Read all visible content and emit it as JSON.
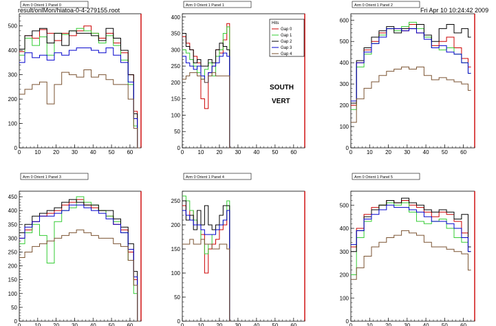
{
  "header": {
    "file_path": "result/onlMon/hiatoa-0-4-279155.root",
    "timestamp": "Fri Apr 10 10:24:42 2009"
  },
  "overlay": {
    "line1": "SOUTH",
    "line2": "VERT"
  },
  "colors": {
    "gap0": "#cc0000",
    "gap1": "#cc0000",
    "gap2": "#33cc33",
    "gap3": "#000000",
    "gap4": "#0000cc",
    "gap5": "#7a5230"
  },
  "chart_data": [
    {
      "type": "line",
      "title": "Arm 0 Orient 1 Panel 0",
      "xlim": [
        0,
        66
      ],
      "ylim": [
        0,
        550
      ],
      "xticks": [
        0,
        10,
        20,
        30,
        40,
        50,
        60
      ],
      "yticks": [
        0,
        100,
        200,
        300,
        400,
        500
      ],
      "x": [
        1,
        5,
        9,
        13,
        17,
        21,
        25,
        29,
        33,
        37,
        41,
        45,
        49,
        53,
        57,
        61,
        63,
        65
      ],
      "series": [
        {
          "color": "#cc0000",
          "values": [
            395,
            460,
            450,
            485,
            470,
            440,
            470,
            460,
            480,
            500,
            470,
            450,
            470,
            430,
            390,
            300,
            150,
            0
          ]
        },
        {
          "color": "#33cc33",
          "values": [
            380,
            450,
            420,
            455,
            380,
            470,
            465,
            480,
            490,
            480,
            470,
            430,
            460,
            420,
            360,
            260,
            90,
            0
          ]
        },
        {
          "color": "#000000",
          "values": [
            405,
            460,
            480,
            490,
            430,
            470,
            420,
            480,
            470,
            470,
            460,
            440,
            490,
            450,
            400,
            300,
            140,
            0
          ]
        },
        {
          "color": "#0000cc",
          "values": [
            350,
            390,
            370,
            380,
            360,
            390,
            380,
            400,
            410,
            410,
            400,
            390,
            410,
            380,
            350,
            270,
            120,
            0
          ]
        },
        {
          "color": "#7a5230",
          "values": [
            220,
            240,
            260,
            270,
            180,
            260,
            310,
            300,
            290,
            320,
            290,
            300,
            280,
            260,
            260,
            200,
            80,
            0
          ]
        }
      ]
    },
    {
      "type": "line",
      "title": "Arm 0 Orient 1 Panel 1",
      "xlim": [
        0,
        66
      ],
      "ylim": [
        0,
        410
      ],
      "xticks": [
        0,
        10,
        20,
        30,
        40,
        50,
        60
      ],
      "yticks": [
        0,
        50,
        100,
        150,
        200,
        250,
        300,
        350,
        400
      ],
      "x": [
        1,
        3,
        5,
        7,
        9,
        11,
        13,
        15,
        17,
        19,
        21,
        23,
        25,
        26
      ],
      "legend": {
        "title": "Hits",
        "entries": [
          "Gap 0",
          "Gap 1",
          "Gap 2",
          "Gap 3",
          "Gap 4"
        ],
        "position": "top-right"
      },
      "series": [
        {
          "color": "#cc0000",
          "values": [
            340,
            320,
            300,
            280,
            260,
            150,
            120,
            230,
            250,
            300,
            290,
            330,
            380,
            0
          ]
        },
        {
          "color": "#33cc33",
          "values": [
            300,
            290,
            270,
            250,
            230,
            210,
            240,
            260,
            220,
            280,
            300,
            350,
            370,
            0
          ]
        },
        {
          "color": "#000000",
          "values": [
            350,
            310,
            300,
            260,
            270,
            250,
            250,
            270,
            260,
            300,
            320,
            310,
            300,
            0
          ]
        },
        {
          "color": "#0000cc",
          "values": [
            280,
            260,
            250,
            240,
            250,
            220,
            200,
            230,
            250,
            260,
            280,
            290,
            280,
            0
          ]
        },
        {
          "color": "#7a5230",
          "values": [
            210,
            220,
            230,
            230,
            220,
            210,
            200,
            220,
            230,
            220,
            220,
            220,
            220,
            0
          ]
        }
      ]
    },
    {
      "type": "line",
      "title": "Arm 0 Orient 1 Panel 2",
      "xlim": [
        0,
        66
      ],
      "ylim": [
        0,
        630
      ],
      "xticks": [
        0,
        10,
        20,
        30,
        40,
        50,
        60
      ],
      "yticks": [
        0,
        100,
        200,
        300,
        400,
        500,
        600
      ],
      "x": [
        1,
        5,
        9,
        13,
        17,
        21,
        25,
        29,
        33,
        37,
        41,
        45,
        49,
        53,
        57,
        61,
        64
      ],
      "series": [
        {
          "color": "#cc0000",
          "values": [
            200,
            400,
            460,
            500,
            540,
            560,
            560,
            550,
            580,
            540,
            520,
            480,
            500,
            520,
            470,
            420,
            380
          ]
        },
        {
          "color": "#33cc33",
          "values": [
            180,
            380,
            440,
            490,
            530,
            560,
            550,
            570,
            590,
            560,
            520,
            470,
            460,
            470,
            440,
            400,
            350
          ]
        },
        {
          "color": "#000000",
          "values": [
            210,
            410,
            470,
            520,
            550,
            570,
            540,
            560,
            560,
            580,
            530,
            500,
            560,
            580,
            540,
            560,
            520
          ]
        },
        {
          "color": "#0000cc",
          "values": [
            220,
            400,
            450,
            490,
            520,
            560,
            560,
            550,
            560,
            540,
            510,
            470,
            480,
            450,
            440,
            400,
            350
          ]
        },
        {
          "color": "#7a5230",
          "values": [
            120,
            230,
            280,
            310,
            340,
            360,
            370,
            380,
            370,
            380,
            340,
            320,
            330,
            320,
            310,
            300,
            270
          ]
        }
      ]
    },
    {
      "type": "line",
      "title": "Arm 0 Orient 1 Panel 3",
      "xlim": [
        0,
        66
      ],
      "ylim": [
        0,
        470
      ],
      "xticks": [
        0,
        10,
        20,
        30,
        40,
        50,
        60
      ],
      "yticks": [
        0,
        50,
        100,
        150,
        200,
        250,
        300,
        350,
        400,
        450
      ],
      "x": [
        1,
        5,
        9,
        13,
        17,
        21,
        25,
        29,
        33,
        37,
        41,
        45,
        49,
        53,
        57,
        61,
        63,
        65
      ],
      "series": [
        {
          "color": "#cc0000",
          "values": [
            300,
            330,
            360,
            380,
            390,
            400,
            420,
            430,
            440,
            420,
            410,
            400,
            380,
            350,
            330,
            250,
            150,
            0
          ]
        },
        {
          "color": "#33cc33",
          "values": [
            280,
            320,
            350,
            310,
            210,
            360,
            400,
            410,
            450,
            430,
            420,
            400,
            380,
            360,
            320,
            220,
            100,
            0
          ]
        },
        {
          "color": "#000000",
          "values": [
            320,
            350,
            380,
            390,
            400,
            410,
            430,
            440,
            430,
            420,
            420,
            400,
            400,
            370,
            340,
            280,
            180,
            0
          ]
        },
        {
          "color": "#0000cc",
          "values": [
            300,
            340,
            360,
            380,
            380,
            390,
            400,
            420,
            420,
            410,
            400,
            390,
            370,
            350,
            320,
            260,
            160,
            0
          ]
        },
        {
          "color": "#7a5230",
          "values": [
            230,
            250,
            270,
            280,
            290,
            300,
            310,
            320,
            330,
            320,
            310,
            300,
            300,
            280,
            270,
            220,
            130,
            0
          ]
        }
      ]
    },
    {
      "type": "line",
      "title": "Arm 0 Orient 1 Panel 4",
      "xlim": [
        0,
        66
      ],
      "ylim": [
        0,
        270
      ],
      "xticks": [
        0,
        10,
        20,
        30,
        40,
        50,
        60
      ],
      "yticks": [
        0,
        50,
        100,
        150,
        200,
        250
      ],
      "x": [
        1,
        3,
        5,
        7,
        9,
        11,
        13,
        15,
        17,
        19,
        21,
        23,
        25,
        26
      ],
      "series": [
        {
          "color": "#cc0000",
          "values": [
            240,
            220,
            230,
            210,
            200,
            180,
            100,
            150,
            160,
            170,
            190,
            200,
            230,
            0
          ]
        },
        {
          "color": "#33cc33",
          "values": [
            260,
            250,
            230,
            210,
            200,
            170,
            140,
            160,
            180,
            190,
            200,
            210,
            250,
            0
          ]
        },
        {
          "color": "#000000",
          "values": [
            250,
            210,
            220,
            190,
            230,
            200,
            240,
            200,
            190,
            200,
            220,
            240,
            240,
            0
          ]
        },
        {
          "color": "#0000cc",
          "values": [
            230,
            220,
            210,
            200,
            200,
            190,
            180,
            180,
            180,
            190,
            200,
            210,
            230,
            0
          ]
        },
        {
          "color": "#7a5230",
          "values": [
            160,
            160,
            170,
            160,
            160,
            170,
            160,
            160,
            150,
            150,
            160,
            160,
            150,
            0
          ]
        }
      ]
    },
    {
      "type": "line",
      "title": "Arm 0 Orient 1 Panel 5",
      "xlim": [
        0,
        66
      ],
      "ylim": [
        0,
        560
      ],
      "xticks": [
        0,
        10,
        20,
        30,
        40,
        50,
        60
      ],
      "yticks": [
        0,
        100,
        200,
        300,
        400,
        500
      ],
      "x": [
        1,
        5,
        9,
        13,
        17,
        21,
        25,
        29,
        33,
        37,
        41,
        45,
        49,
        53,
        57,
        61,
        64
      ],
      "series": [
        {
          "color": "#cc0000",
          "values": [
            320,
            400,
            460,
            490,
            500,
            520,
            510,
            520,
            500,
            490,
            470,
            450,
            470,
            460,
            430,
            380,
            300
          ]
        },
        {
          "color": "#33cc33",
          "values": [
            200,
            360,
            430,
            480,
            500,
            510,
            500,
            510,
            470,
            430,
            420,
            430,
            440,
            400,
            360,
            340,
            300
          ]
        },
        {
          "color": "#000000",
          "values": [
            300,
            390,
            450,
            480,
            500,
            520,
            510,
            530,
            510,
            500,
            480,
            470,
            480,
            470,
            440,
            460,
            320
          ]
        },
        {
          "color": "#0000cc",
          "values": [
            330,
            390,
            440,
            460,
            480,
            500,
            490,
            490,
            480,
            470,
            450,
            430,
            430,
            420,
            400,
            360,
            300
          ]
        },
        {
          "color": "#7a5230",
          "values": [
            180,
            230,
            280,
            320,
            340,
            360,
            370,
            390,
            380,
            370,
            340,
            320,
            320,
            310,
            300,
            290,
            220
          ]
        }
      ]
    }
  ]
}
